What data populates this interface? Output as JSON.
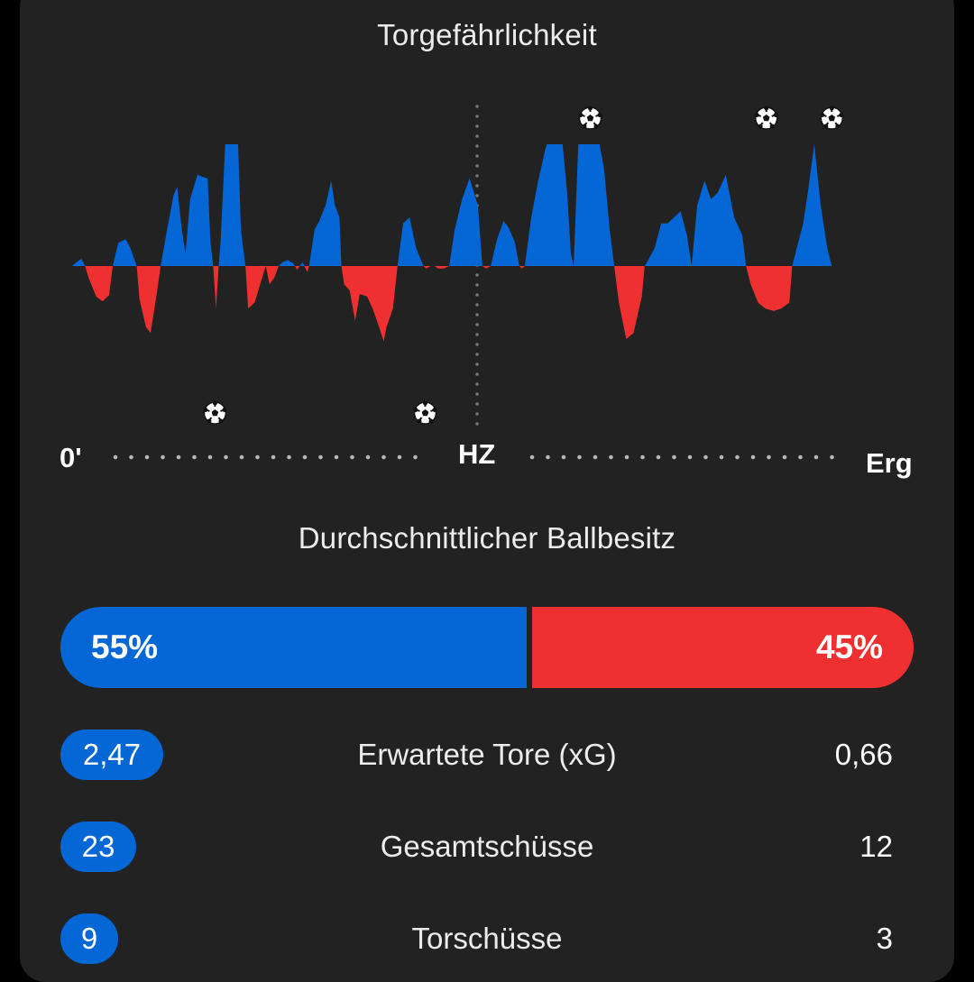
{
  "momentum": {
    "title": "Torgefährlichkeit",
    "start_label": "0'",
    "half_label": "HZ",
    "end_label": "Erg",
    "colors": {
      "home": "#0566d6",
      "away": "#ef3030"
    }
  },
  "chart_data": {
    "type": "area",
    "title": "Torgefährlichkeit",
    "x_range": [
      0,
      90
    ],
    "y_range": [
      -1,
      1
    ],
    "series": [
      {
        "values": [
          [
            0,
            0
          ],
          [
            0.3,
            0.02
          ],
          [
            1,
            0.06
          ],
          [
            1.4,
            0
          ],
          [
            1.8,
            -0.1
          ],
          [
            2.6,
            -0.25
          ],
          [
            3.3,
            -0.29
          ],
          [
            4,
            -0.24
          ],
          [
            4.4,
            0
          ],
          [
            5,
            0.19
          ],
          [
            5.8,
            0.22
          ],
          [
            6.3,
            0.15
          ],
          [
            7,
            0
          ],
          [
            7.3,
            -0.27
          ],
          [
            8,
            -0.5
          ],
          [
            8.5,
            -0.55
          ],
          [
            9.2,
            -0.22
          ],
          [
            9.6,
            0
          ],
          [
            10.3,
            0.3
          ],
          [
            11,
            0.58
          ],
          [
            11.4,
            0.65
          ],
          [
            11.9,
            0.3
          ],
          [
            12.3,
            0.1
          ],
          [
            12.8,
            0.55
          ],
          [
            13.6,
            0.75
          ],
          [
            14.2,
            0.73
          ],
          [
            14.7,
            0.72
          ],
          [
            15,
            0.2
          ],
          [
            15.3,
            0
          ],
          [
            15.6,
            -0.35
          ],
          [
            15.9,
            0
          ],
          [
            16.1,
            0.2
          ],
          [
            16.6,
            1
          ],
          [
            18,
            1
          ],
          [
            18.3,
            0.3
          ],
          [
            18.8,
            0
          ],
          [
            19.1,
            -0.35
          ],
          [
            19.8,
            -0.3
          ],
          [
            20.4,
            -0.15
          ],
          [
            21,
            0
          ],
          [
            21.4,
            -0.15
          ],
          [
            21.9,
            -0.1
          ],
          [
            22.4,
            0
          ],
          [
            22.8,
            0.03
          ],
          [
            23.4,
            0.05
          ],
          [
            24,
            0.02
          ],
          [
            24.4,
            -0.03
          ],
          [
            25,
            0.03
          ],
          [
            25.5,
            -0.05
          ],
          [
            25.7,
            0
          ],
          [
            26.3,
            0.3
          ],
          [
            26.8,
            0.37
          ],
          [
            27.5,
            0.5
          ],
          [
            28.1,
            0.7
          ],
          [
            28.5,
            0.5
          ],
          [
            29,
            0.4
          ],
          [
            29.2,
            0
          ],
          [
            29.5,
            -0.15
          ],
          [
            30.1,
            -0.2
          ],
          [
            30.7,
            -0.45
          ],
          [
            31.2,
            -0.23
          ],
          [
            32,
            -0.25
          ],
          [
            32.6,
            -0.35
          ],
          [
            33.2,
            -0.48
          ],
          [
            33.8,
            -0.62
          ],
          [
            34.1,
            -0.5
          ],
          [
            34.8,
            -0.35
          ],
          [
            35.3,
            0
          ],
          [
            35.9,
            0.35
          ],
          [
            36.6,
            0.4
          ],
          [
            37.3,
            0.15
          ],
          [
            38.1,
            0
          ],
          [
            38.4,
            -0.02
          ],
          [
            38.9,
            0
          ],
          [
            39.3,
            0
          ],
          [
            39.7,
            -0.02
          ],
          [
            40.3,
            -0.02
          ],
          [
            40.9,
            0
          ],
          [
            41.5,
            0.3
          ],
          [
            42.3,
            0.55
          ],
          [
            43.1,
            0.72
          ],
          [
            44,
            0.5
          ],
          [
            44.5,
            0
          ],
          [
            44.9,
            -0.02
          ],
          [
            45.4,
            0
          ],
          [
            46.1,
            0.22
          ],
          [
            46.8,
            0.37
          ],
          [
            47.3,
            0.32
          ],
          [
            48,
            0.2
          ],
          [
            48.5,
            0
          ],
          [
            48.8,
            -0.02
          ],
          [
            49.1,
            0
          ],
          [
            49.8,
            0.4
          ],
          [
            50.5,
            0.68
          ],
          [
            51.3,
            0.95
          ],
          [
            51.5,
            1
          ],
          [
            53.2,
            1
          ],
          [
            53.7,
            0.6
          ],
          [
            54.1,
            0.1
          ],
          [
            54.4,
            0
          ],
          [
            54.9,
            1
          ],
          [
            57.2,
            1
          ],
          [
            57.7,
            0.8
          ],
          [
            58.3,
            0.3
          ],
          [
            58.8,
            0
          ],
          [
            59.3,
            -0.3
          ],
          [
            60.1,
            -0.6
          ],
          [
            60.9,
            -0.55
          ],
          [
            61.8,
            -0.25
          ],
          [
            62.1,
            0
          ],
          [
            62.5,
            0.05
          ],
          [
            63.2,
            0.15
          ],
          [
            63.9,
            0.35
          ],
          [
            64.6,
            0.35
          ],
          [
            65.3,
            0.4
          ],
          [
            66,
            0.45
          ],
          [
            66.7,
            0.25
          ],
          [
            67.2,
            0
          ],
          [
            67.8,
            0.5
          ],
          [
            68.6,
            0.7
          ],
          [
            69.3,
            0.55
          ],
          [
            70,
            0.6
          ],
          [
            70.9,
            0.75
          ],
          [
            71.8,
            0.4
          ],
          [
            72.7,
            0.25
          ],
          [
            73.1,
            0
          ],
          [
            73.6,
            -0.15
          ],
          [
            74.4,
            -0.3
          ],
          [
            75.2,
            -0.35
          ],
          [
            76.1,
            -0.37
          ],
          [
            76.9,
            -0.35
          ],
          [
            77.8,
            -0.3
          ],
          [
            78.1,
            0
          ],
          [
            78.6,
            0.15
          ],
          [
            79.3,
            0.35
          ],
          [
            79.8,
            0.6
          ],
          [
            80.5,
            1
          ],
          [
            81.2,
            0.5
          ],
          [
            81.9,
            0.15
          ],
          [
            82.4,
            0
          ]
        ]
      }
    ],
    "goals": [
      {
        "minute": 15.5,
        "team": "away"
      },
      {
        "minute": 38.3,
        "team": "away"
      },
      {
        "minute": 56.2,
        "team": "home"
      },
      {
        "minute": 75.3,
        "team": "home"
      },
      {
        "minute": 82.4,
        "team": "home"
      }
    ]
  },
  "possession": {
    "title": "Durchschnittlicher Ballbesitz",
    "home_pct": 55,
    "away_pct": 45,
    "home_label": "55%",
    "away_label": "45%"
  },
  "stats": [
    {
      "label": "Erwartete Tore (xG)",
      "home": "2,47",
      "away": "0,66"
    },
    {
      "label": "Gesamtschüsse",
      "home": "23",
      "away": "12"
    },
    {
      "label": "Torschüsse",
      "home": "9",
      "away": "3"
    }
  ]
}
